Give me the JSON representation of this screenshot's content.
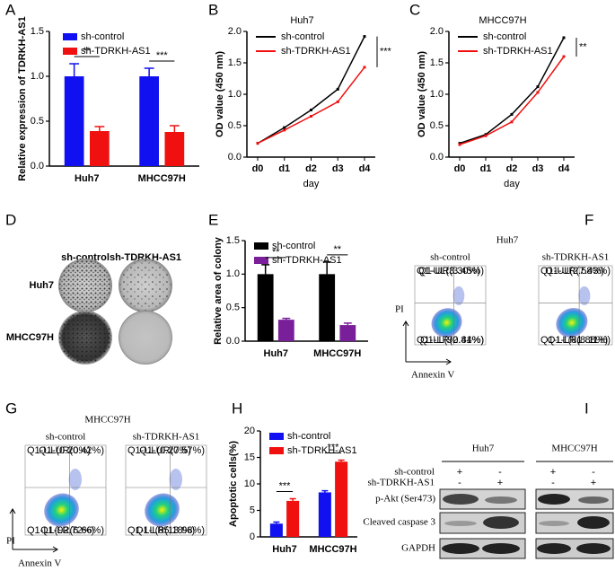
{
  "panel_labels": [
    "A",
    "B",
    "C",
    "D",
    "E",
    "F",
    "G",
    "H",
    "I"
  ],
  "chart_data": [
    {
      "type": "bar",
      "y_label": "Relative expression of TDRKH-AS1",
      "categories": [
        "Huh7",
        "MHCC97H"
      ],
      "series": [
        {
          "name": "sh-control",
          "color": "#1010f0",
          "values": [
            1.0,
            1.0
          ],
          "errors": [
            0.14,
            0.09
          ]
        },
        {
          "name": "sh-TDRKH-AS1",
          "color": "#f01010",
          "values": [
            0.39,
            0.38
          ],
          "errors": [
            0.05,
            0.07
          ]
        }
      ],
      "ylim": [
        0,
        1.5
      ],
      "yticks": [
        {
          "value": 0,
          "label": "0.0"
        },
        {
          "value": 0.5,
          "label": "0.5"
        },
        {
          "value": 1,
          "label": "1.0"
        },
        {
          "value": 1.5,
          "label": "1.5"
        }
      ],
      "annotations": [
        "**",
        "***"
      ]
    },
    {
      "type": "line",
      "title": "Huh7",
      "y_label": "OD value (450 nm)",
      "x_label": "day",
      "categories": [
        "d0",
        "d1",
        "d2",
        "d3",
        "d4"
      ],
      "series": [
        {
          "name": "sh-control",
          "color": "#000000",
          "values": [
            0.22,
            0.47,
            0.75,
            1.08,
            1.92
          ]
        },
        {
          "name": "sh-TDRKH-AS1",
          "color": "#f01010",
          "values": [
            0.22,
            0.43,
            0.65,
            0.88,
            1.43
          ]
        }
      ],
      "ylim": [
        0,
        2
      ],
      "yticks": [
        {
          "value": 0,
          "label": "0.0"
        },
        {
          "value": 0.5,
          "label": "0.5"
        },
        {
          "value": 1,
          "label": "1.0"
        },
        {
          "value": 1.5,
          "label": "1.5"
        },
        {
          "value": 2,
          "label": "2.0"
        }
      ],
      "annotations": [
        "***"
      ]
    },
    {
      "type": "line",
      "title": "MHCC97H",
      "y_label": "OD value (450 nm)",
      "x_label": "day",
      "categories": [
        "d0",
        "d1",
        "d2",
        "d3",
        "d4"
      ],
      "series": [
        {
          "name": "sh-control",
          "color": "#000000",
          "values": [
            0.22,
            0.36,
            0.68,
            1.12,
            1.9
          ]
        },
        {
          "name": "sh-TDRKH-AS1",
          "color": "#f01010",
          "values": [
            0.2,
            0.34,
            0.56,
            1.03,
            1.6
          ]
        }
      ],
      "ylim": [
        0,
        2
      ],
      "yticks": [
        {
          "value": 0,
          "label": "0.0"
        },
        {
          "value": 0.5,
          "label": "0.5"
        },
        {
          "value": 1,
          "label": "1.0"
        },
        {
          "value": 1.5,
          "label": "1.5"
        },
        {
          "value": 2,
          "label": "2.0"
        }
      ],
      "annotations": [
        "**"
      ]
    },
    {
      "type": "bar",
      "y_label": "Relative area of colony",
      "categories": [
        "Huh7",
        "MHCC97H"
      ],
      "series": [
        {
          "name": "sh-control",
          "color": "#000000",
          "values": [
            1.0,
            1.0
          ],
          "errors": [
            0.14,
            0.18
          ]
        },
        {
          "name": "sh-TDRKH-AS1",
          "color": "#7a1f9a",
          "values": [
            0.32,
            0.24
          ],
          "errors": [
            0.02,
            0.03
          ]
        }
      ],
      "ylim": [
        0,
        1.5
      ],
      "yticks": [
        {
          "value": 0,
          "label": "0.0"
        },
        {
          "value": 0.5,
          "label": "0.5"
        },
        {
          "value": 1,
          "label": "1.0"
        },
        {
          "value": 1.5,
          "label": "1.5"
        }
      ],
      "annotations": [
        "**",
        "**"
      ]
    },
    {
      "type": "bar",
      "y_label": "Apoptotic cells(%)",
      "categories": [
        "Huh7",
        "MHCC97H"
      ],
      "series": [
        {
          "name": "sh-control",
          "color": "#1010f0",
          "values": [
            2.5,
            8.4
          ],
          "errors": [
            0.3,
            0.3
          ]
        },
        {
          "name": "sh-TDRKH-AS1",
          "color": "#f01010",
          "values": [
            6.8,
            14.2
          ],
          "errors": [
            0.4,
            0.3
          ]
        }
      ],
      "ylim": [
        0,
        20
      ],
      "yticks": [
        0,
        5,
        10,
        15,
        20
      ],
      "annotations": [
        "***",
        "***"
      ]
    }
  ],
  "colony": {
    "columns": [
      "sh-control",
      "sh-TDRKH-AS1"
    ],
    "rows": [
      "Huh7",
      "MHCC97H"
    ]
  },
  "flow": [
    {
      "title": "Huh7",
      "y_label": "PI",
      "x_label": "Annexin V",
      "samples": [
        {
          "name": "sh-control",
          "quadrants": [
            "Q1-UL(3.30%)",
            "Q1-UR(3.45%)",
            "Q1-LL(90.84%)",
            "Q1-LR(2.41%)"
          ]
        },
        {
          "name": "sh-TDRKH-AS1",
          "quadrants": [
            "Q1-UL(2.58%)",
            "Q1-UR(7.43%)",
            "Q1-LL(81.88%)",
            "Q1-LR(8.11%)"
          ]
        }
      ]
    },
    {
      "title": "MHCC97H",
      "y_label": "PI",
      "x_label": "Annexin V",
      "samples": [
        {
          "name": "sh-control",
          "quadrants": [
            "Q1-UL(0.20%)",
            "Q1-UR(0.42%)",
            "Q1-LL(92.72%)",
            "Q1-LR(6.66%)"
          ]
        },
        {
          "name": "sh-TDRKH-AS1",
          "quadrants": [
            "Q1-UL(0.27%)",
            "Q1-UR(0.57%)",
            "Q1-LL(85.18%)",
            "Q1-LR(13.98%)"
          ]
        }
      ]
    }
  ],
  "western": {
    "groups": [
      "Huh7",
      "MHCC97H"
    ],
    "conditions": [
      "sh-control",
      "sh-TDRKH-AS1"
    ],
    "signs": [
      [
        "+",
        "-"
      ],
      [
        "-",
        "+"
      ],
      [
        "+",
        "-"
      ],
      [
        "-",
        "+"
      ]
    ],
    "proteins": [
      "p-Akt (Ser473)",
      "Cleaved caspase 3",
      "GAPDH"
    ]
  }
}
